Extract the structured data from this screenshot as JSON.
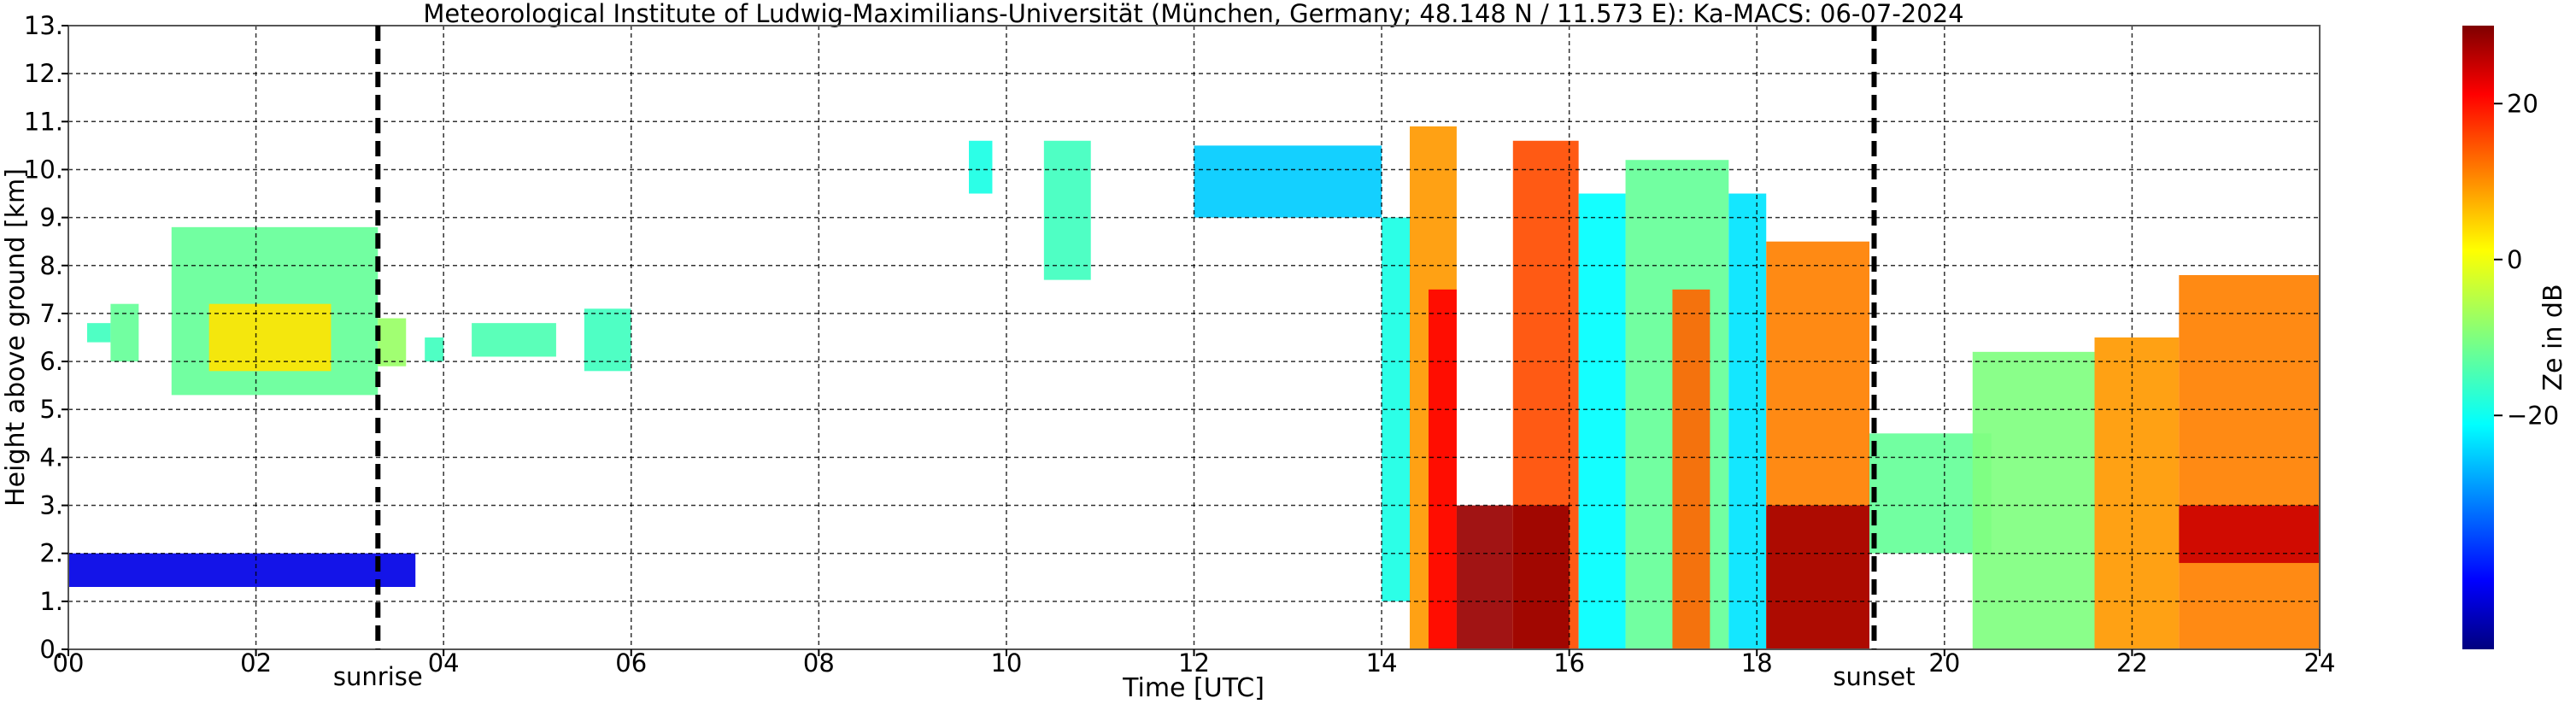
{
  "chart_data": {
    "type": "heatmap",
    "title": "Meteorological Institute of Ludwig-Maximilians-Universität (München, Germany; 48.148 N / 11.573 E):    Ka-MACS: 06-07-2024",
    "xlabel": "Time [UTC]",
    "ylabel": "Height above ground [km]",
    "xlim": [
      0,
      24
    ],
    "ylim": [
      0,
      13
    ],
    "x_ticks": [
      "00",
      "02",
      "04",
      "06",
      "08",
      "10",
      "12",
      "14",
      "16",
      "18",
      "20",
      "22",
      "24"
    ],
    "x_tick_values": [
      0,
      2,
      4,
      6,
      8,
      10,
      12,
      14,
      16,
      18,
      20,
      22,
      24
    ],
    "y_ticks": [
      "0.",
      "1.",
      "2.",
      "3.",
      "4.",
      "5.",
      "6.",
      "7.",
      "8.",
      "9.",
      "10.",
      "11.",
      "12.",
      "13."
    ],
    "y_tick_values": [
      0,
      1,
      2,
      3,
      4,
      5,
      6,
      7,
      8,
      9,
      10,
      11,
      12,
      13
    ],
    "grid": true,
    "colormap": "jet",
    "colorbar": {
      "label": "Ze in dB",
      "range": [
        -50,
        30
      ],
      "ticks": [
        {
          "label": "20",
          "value": 20
        },
        {
          "label": "0",
          "value": 0
        },
        {
          "label": "−20",
          "value": -20
        }
      ]
    },
    "vertical_markers": [
      {
        "label": "sunrise",
        "time": 3.3
      },
      {
        "label": "sunset",
        "time": 19.25
      }
    ],
    "echo_regions": [
      {
        "t0": 0.2,
        "t1": 0.45,
        "z0": 6.4,
        "z1": 6.8,
        "ze": -15
      },
      {
        "t0": 0.45,
        "t1": 0.75,
        "z0": 6.0,
        "z1": 7.2,
        "ze": -12
      },
      {
        "t0": 1.1,
        "t1": 3.3,
        "z0": 5.3,
        "z1": 8.8,
        "ze": -12
      },
      {
        "t0": 1.5,
        "t1": 2.8,
        "z0": 5.8,
        "z1": 7.2,
        "ze": 2
      },
      {
        "t0": 3.3,
        "t1": 3.6,
        "z0": 5.9,
        "z1": 6.9,
        "ze": -8
      },
      {
        "t0": 3.8,
        "t1": 4.0,
        "z0": 6.0,
        "z1": 6.5,
        "ze": -15
      },
      {
        "t0": 4.3,
        "t1": 5.2,
        "z0": 6.1,
        "z1": 6.8,
        "ze": -14
      },
      {
        "t0": 5.5,
        "t1": 6.0,
        "z0": 5.8,
        "z1": 7.1,
        "ze": -15
      },
      {
        "t0": 0.0,
        "t1": 3.7,
        "z0": 1.3,
        "z1": 2.0,
        "ze": -42
      },
      {
        "t0": 9.6,
        "t1": 9.85,
        "z0": 9.5,
        "z1": 10.6,
        "ze": -18
      },
      {
        "t0": 10.4,
        "t1": 10.9,
        "z0": 7.7,
        "z1": 10.6,
        "ze": -15
      },
      {
        "t0": 12.0,
        "t1": 14.0,
        "z0": 9.0,
        "z1": 10.5,
        "ze": -24
      },
      {
        "t0": 14.0,
        "t1": 14.3,
        "z0": 1.0,
        "z1": 9.0,
        "ze": -18
      },
      {
        "t0": 14.3,
        "t1": 14.8,
        "z0": 0.0,
        "z1": 10.9,
        "ze": 8
      },
      {
        "t0": 14.5,
        "t1": 14.8,
        "z0": 0.0,
        "z1": 7.5,
        "ze": 20
      },
      {
        "t0": 14.8,
        "t1": 15.4,
        "z0": 0.0,
        "z1": 3.0,
        "ze": 28
      },
      {
        "t0": 15.4,
        "t1": 16.1,
        "z0": 0.0,
        "z1": 10.6,
        "ze": 14
      },
      {
        "t0": 15.4,
        "t1": 16.0,
        "z0": 0.0,
        "z1": 3.0,
        "ze": 28
      },
      {
        "t0": 16.1,
        "t1": 16.6,
        "z0": 0.0,
        "z1": 9.5,
        "ze": -20
      },
      {
        "t0": 16.6,
        "t1": 17.7,
        "z0": 0.0,
        "z1": 10.2,
        "ze": -12
      },
      {
        "t0": 17.1,
        "t1": 17.5,
        "z0": 0.0,
        "z1": 7.5,
        "ze": 12
      },
      {
        "t0": 17.7,
        "t1": 18.1,
        "z0": 0.0,
        "z1": 9.5,
        "ze": -22
      },
      {
        "t0": 18.1,
        "t1": 19.2,
        "z0": 0.0,
        "z1": 8.5,
        "ze": 10
      },
      {
        "t0": 18.1,
        "t1": 19.2,
        "z0": 0.0,
        "z1": 3.0,
        "ze": 27
      },
      {
        "t0": 19.2,
        "t1": 20.5,
        "z0": 2.0,
        "z1": 4.5,
        "ze": -12
      },
      {
        "t0": 20.3,
        "t1": 21.6,
        "z0": 0.0,
        "z1": 6.2,
        "ze": -10
      },
      {
        "t0": 21.6,
        "t1": 22.5,
        "z0": 0.0,
        "z1": 6.5,
        "ze": 8
      },
      {
        "t0": 22.5,
        "t1": 24.0,
        "z0": 0.0,
        "z1": 7.8,
        "ze": 10
      },
      {
        "t0": 22.5,
        "t1": 24.0,
        "z0": 1.8,
        "z1": 3.0,
        "ze": 24
      }
    ]
  }
}
